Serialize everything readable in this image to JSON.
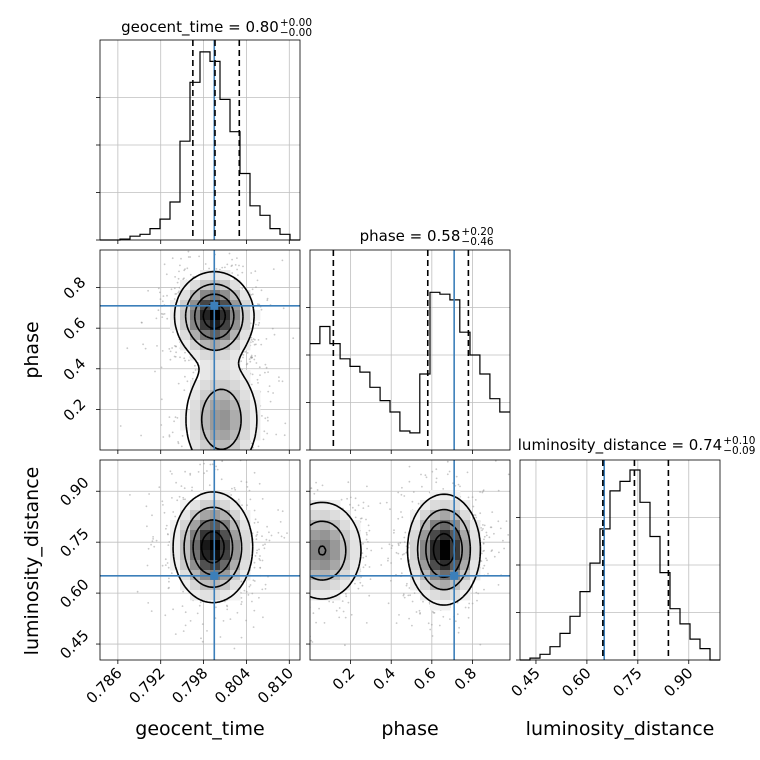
{
  "chart_data": {
    "type": "corner",
    "parameters": [
      "geocent_time",
      "phase",
      "luminosity_distance"
    ],
    "colors": {
      "truth": "#3c7fba",
      "hist": "#000000",
      "grid": "#bfbfbf",
      "quantile": "#000000"
    },
    "titles": [
      {
        "param": "geocent_time",
        "main": "geocent_time = 0.80",
        "sup": "+0.00",
        "sub": "−0.00"
      },
      {
        "param": "phase",
        "main": "phase = 0.58",
        "sup": "+0.20",
        "sub": "−0.46"
      },
      {
        "param": "luminosity_distance",
        "main": "luminosity_distance = 0.74",
        "sup": "+0.10",
        "sub": "−0.09"
      }
    ],
    "axis_labels": {
      "x": [
        "geocent_time",
        "phase",
        "luminosity_distance"
      ],
      "y_row1": "phase",
      "y_row2": "luminosity_distance"
    },
    "ranges": {
      "geocent_time": [
        0.7835,
        0.8115
      ],
      "phase": [
        0.0,
        0.985
      ],
      "luminosity_distance": [
        0.403,
        0.992
      ]
    },
    "ticks": {
      "geocent_time": {
        "values": [
          0.786,
          0.792,
          0.798,
          0.804,
          0.81
        ],
        "labels": [
          "0.786",
          "0.792",
          "0.798",
          "0.804",
          "0.810"
        ]
      },
      "phase": {
        "values": [
          0.2,
          0.4,
          0.6,
          0.8
        ],
        "labels": [
          "0.2",
          "0.4",
          "0.6",
          "0.8"
        ]
      },
      "luminosity_distance": {
        "values": [
          0.45,
          0.6,
          0.75,
          0.9
        ],
        "labels": [
          "0.45",
          "0.60",
          "0.75",
          "0.90"
        ]
      }
    },
    "truths": {
      "geocent_time": 0.7995,
      "phase": 0.71,
      "luminosity_distance": 0.651
    },
    "quantiles": {
      "geocent_time": [
        0.7965,
        0.7996,
        0.803
      ],
      "phase": [
        0.115,
        0.58,
        0.78
      ],
      "luminosity_distance": [
        0.647,
        0.74,
        0.84
      ]
    },
    "histograms": {
      "geocent_time": {
        "edges": [
          0.7835,
          0.7849,
          0.7863,
          0.7877,
          0.7891,
          0.7905,
          0.7919,
          0.7933,
          0.7947,
          0.7961,
          0.7975,
          0.7989,
          0.8003,
          0.8017,
          0.8031,
          0.8045,
          0.8059,
          0.8073,
          0.8087,
          0.8101,
          0.8115
        ],
        "counts": [
          0,
          0,
          0.005,
          0.02,
          0.03,
          0.06,
          0.11,
          0.2,
          0.52,
          0.83,
          0.99,
          0.94,
          0.74,
          0.57,
          0.35,
          0.18,
          0.13,
          0.06,
          0.03,
          0.0
        ]
      },
      "phase": {
        "edges": [
          0.0,
          0.049,
          0.098,
          0.148,
          0.197,
          0.246,
          0.295,
          0.345,
          0.394,
          0.443,
          0.492,
          0.541,
          0.591,
          0.64,
          0.689,
          0.738,
          0.788,
          0.837,
          0.886,
          0.935,
          0.985
        ],
        "counts": [
          0.56,
          0.65,
          0.56,
          0.48,
          0.44,
          0.41,
          0.33,
          0.26,
          0.2,
          0.1,
          0.09,
          0.4,
          0.83,
          0.82,
          0.79,
          0.62,
          0.5,
          0.4,
          0.27,
          0.2
        ]
      },
      "luminosity_distance": {
        "edges": [
          0.403,
          0.4325,
          0.4619,
          0.4914,
          0.5208,
          0.5503,
          0.5797,
          0.6092,
          0.6386,
          0.6681,
          0.6975,
          0.727,
          0.7564,
          0.7859,
          0.8153,
          0.8448,
          0.8742,
          0.9037,
          0.9331,
          0.9626,
          0.992
        ],
        "counts": [
          0.0,
          0.01,
          0.03,
          0.07,
          0.14,
          0.23,
          0.36,
          0.51,
          0.69,
          0.89,
          0.94,
          1.0,
          0.83,
          0.65,
          0.46,
          0.27,
          0.19,
          0.11,
          0.06,
          0.0
        ]
      }
    },
    "hist_yticks": [
      0.0,
      0.25,
      0.5,
      0.75
    ],
    "modes": [
      {
        "x_param": "geocent_time",
        "y_param": "phase",
        "cx": 0.7995,
        "cy": 0.66,
        "sx": 0.0028,
        "sy": 0.11,
        "w": 1.0
      },
      {
        "x_param": "geocent_time",
        "y_param": "phase",
        "cx": 0.8005,
        "cy": 0.15,
        "sx": 0.003,
        "sy": 0.16,
        "w": 0.55
      },
      {
        "x_param": "geocent_time",
        "y_param": "luminosity_distance",
        "cx": 0.7993,
        "cy": 0.735,
        "sx": 0.0028,
        "sy": 0.082,
        "w": 1.0
      },
      {
        "x_param": "phase",
        "y_param": "luminosity_distance",
        "cx": 0.66,
        "cy": 0.728,
        "sx": 0.09,
        "sy": 0.082,
        "w": 1.0
      },
      {
        "x_param": "phase",
        "y_param": "luminosity_distance",
        "cx": 0.06,
        "cy": 0.725,
        "sx": 0.11,
        "sy": 0.082,
        "w": 0.62
      }
    ]
  }
}
